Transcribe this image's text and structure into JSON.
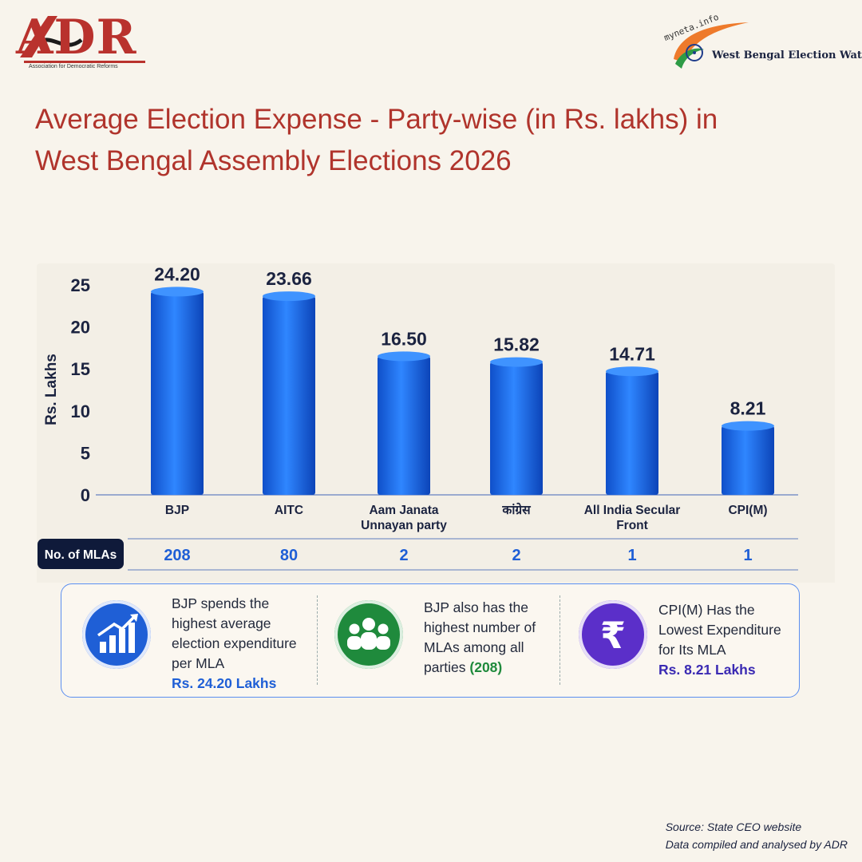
{
  "header": {
    "adr_logo_text": "ADR",
    "adr_logo_subtitle": "Association for Democratic Reforms",
    "partner_logo_myneta": "myneta.info",
    "partner_logo_text": "West Bengal Election Watch"
  },
  "title_line1": "Average Election Expense - Party-wise (in Rs. lakhs) in",
  "title_line2": "West Bengal Assembly Elections 2026",
  "chart_data": {
    "type": "bar",
    "ylabel": "Rs. Lakhs",
    "ylim": [
      0,
      25
    ],
    "yticks": [
      0,
      5,
      10,
      15,
      20,
      25
    ],
    "grid": false,
    "categories": [
      [
        "BJP"
      ],
      [
        "AITC"
      ],
      [
        "Aam Janata",
        "Unnayan party"
      ],
      [
        "कांग्रेस"
      ],
      [
        "All India Secular",
        "Front"
      ],
      [
        "CPI(M)"
      ]
    ],
    "values": [
      24.2,
      23.66,
      16.5,
      15.82,
      14.71,
      8.21
    ],
    "value_labels": [
      "24.20",
      "23.66",
      "16.50",
      "15.82",
      "14.71",
      "8.21"
    ],
    "bar_color": "#1f6fe6",
    "mla_row_label": "No. of MLAs",
    "mla_counts": [
      "208",
      "80",
      "2",
      "2",
      "1",
      "1"
    ]
  },
  "highlights": [
    {
      "icon": "bar-chart-growth-icon",
      "color": "#1f5fd6",
      "lines": [
        "BJP spends the",
        "highest average",
        "election expenditure",
        "per MLA"
      ],
      "highlight": "Rs. 24.20 Lakhs",
      "highlight_color": "#1f5fd6"
    },
    {
      "icon": "people-group-icon",
      "color": "#1f8a3c",
      "lines": [
        "BJP also has the",
        "highest number of",
        "MLAs among all"
      ],
      "last_line_prefix": "parties ",
      "highlight": "(208)",
      "highlight_color": "#1f8a3c"
    },
    {
      "icon": "rupee-icon",
      "color": "#5b2fc9",
      "lines": [
        "CPI(M) Has the",
        "Lowest Expenditure",
        "for Its MLA"
      ],
      "highlight": "Rs. 8.21 Lakhs",
      "highlight_color": "#3a2ab3"
    }
  ],
  "source_line1": "Source: State CEO website",
  "source_line2": "Data compiled and analysed by ADR"
}
